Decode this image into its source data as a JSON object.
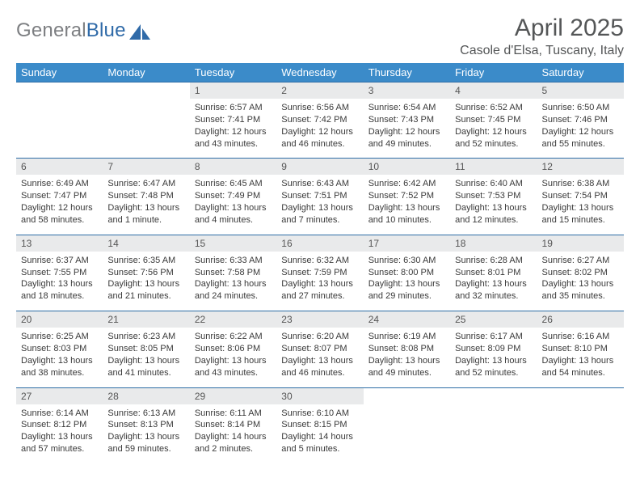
{
  "logo": {
    "general": "General",
    "blue": "Blue"
  },
  "title": "April 2025",
  "location": "Casole d'Elsa, Tuscany, Italy",
  "headers": [
    "Sunday",
    "Monday",
    "Tuesday",
    "Wednesday",
    "Thursday",
    "Friday",
    "Saturday"
  ],
  "colors": {
    "header_bg": "#3b8bc9",
    "header_fg": "#ffffff",
    "daynum_bg": "#e9eaeb",
    "rule": "#2e6ea6",
    "title_fg": "#545657"
  },
  "weeks": [
    [
      null,
      null,
      {
        "n": "1",
        "sunrise": "Sunrise: 6:57 AM",
        "sunset": "Sunset: 7:41 PM",
        "daylight": "Daylight: 12 hours and 43 minutes."
      },
      {
        "n": "2",
        "sunrise": "Sunrise: 6:56 AM",
        "sunset": "Sunset: 7:42 PM",
        "daylight": "Daylight: 12 hours and 46 minutes."
      },
      {
        "n": "3",
        "sunrise": "Sunrise: 6:54 AM",
        "sunset": "Sunset: 7:43 PM",
        "daylight": "Daylight: 12 hours and 49 minutes."
      },
      {
        "n": "4",
        "sunrise": "Sunrise: 6:52 AM",
        "sunset": "Sunset: 7:45 PM",
        "daylight": "Daylight: 12 hours and 52 minutes."
      },
      {
        "n": "5",
        "sunrise": "Sunrise: 6:50 AM",
        "sunset": "Sunset: 7:46 PM",
        "daylight": "Daylight: 12 hours and 55 minutes."
      }
    ],
    [
      {
        "n": "6",
        "sunrise": "Sunrise: 6:49 AM",
        "sunset": "Sunset: 7:47 PM",
        "daylight": "Daylight: 12 hours and 58 minutes."
      },
      {
        "n": "7",
        "sunrise": "Sunrise: 6:47 AM",
        "sunset": "Sunset: 7:48 PM",
        "daylight": "Daylight: 13 hours and 1 minute."
      },
      {
        "n": "8",
        "sunrise": "Sunrise: 6:45 AM",
        "sunset": "Sunset: 7:49 PM",
        "daylight": "Daylight: 13 hours and 4 minutes."
      },
      {
        "n": "9",
        "sunrise": "Sunrise: 6:43 AM",
        "sunset": "Sunset: 7:51 PM",
        "daylight": "Daylight: 13 hours and 7 minutes."
      },
      {
        "n": "10",
        "sunrise": "Sunrise: 6:42 AM",
        "sunset": "Sunset: 7:52 PM",
        "daylight": "Daylight: 13 hours and 10 minutes."
      },
      {
        "n": "11",
        "sunrise": "Sunrise: 6:40 AM",
        "sunset": "Sunset: 7:53 PM",
        "daylight": "Daylight: 13 hours and 12 minutes."
      },
      {
        "n": "12",
        "sunrise": "Sunrise: 6:38 AM",
        "sunset": "Sunset: 7:54 PM",
        "daylight": "Daylight: 13 hours and 15 minutes."
      }
    ],
    [
      {
        "n": "13",
        "sunrise": "Sunrise: 6:37 AM",
        "sunset": "Sunset: 7:55 PM",
        "daylight": "Daylight: 13 hours and 18 minutes."
      },
      {
        "n": "14",
        "sunrise": "Sunrise: 6:35 AM",
        "sunset": "Sunset: 7:56 PM",
        "daylight": "Daylight: 13 hours and 21 minutes."
      },
      {
        "n": "15",
        "sunrise": "Sunrise: 6:33 AM",
        "sunset": "Sunset: 7:58 PM",
        "daylight": "Daylight: 13 hours and 24 minutes."
      },
      {
        "n": "16",
        "sunrise": "Sunrise: 6:32 AM",
        "sunset": "Sunset: 7:59 PM",
        "daylight": "Daylight: 13 hours and 27 minutes."
      },
      {
        "n": "17",
        "sunrise": "Sunrise: 6:30 AM",
        "sunset": "Sunset: 8:00 PM",
        "daylight": "Daylight: 13 hours and 29 minutes."
      },
      {
        "n": "18",
        "sunrise": "Sunrise: 6:28 AM",
        "sunset": "Sunset: 8:01 PM",
        "daylight": "Daylight: 13 hours and 32 minutes."
      },
      {
        "n": "19",
        "sunrise": "Sunrise: 6:27 AM",
        "sunset": "Sunset: 8:02 PM",
        "daylight": "Daylight: 13 hours and 35 minutes."
      }
    ],
    [
      {
        "n": "20",
        "sunrise": "Sunrise: 6:25 AM",
        "sunset": "Sunset: 8:03 PM",
        "daylight": "Daylight: 13 hours and 38 minutes."
      },
      {
        "n": "21",
        "sunrise": "Sunrise: 6:23 AM",
        "sunset": "Sunset: 8:05 PM",
        "daylight": "Daylight: 13 hours and 41 minutes."
      },
      {
        "n": "22",
        "sunrise": "Sunrise: 6:22 AM",
        "sunset": "Sunset: 8:06 PM",
        "daylight": "Daylight: 13 hours and 43 minutes."
      },
      {
        "n": "23",
        "sunrise": "Sunrise: 6:20 AM",
        "sunset": "Sunset: 8:07 PM",
        "daylight": "Daylight: 13 hours and 46 minutes."
      },
      {
        "n": "24",
        "sunrise": "Sunrise: 6:19 AM",
        "sunset": "Sunset: 8:08 PM",
        "daylight": "Daylight: 13 hours and 49 minutes."
      },
      {
        "n": "25",
        "sunrise": "Sunrise: 6:17 AM",
        "sunset": "Sunset: 8:09 PM",
        "daylight": "Daylight: 13 hours and 52 minutes."
      },
      {
        "n": "26",
        "sunrise": "Sunrise: 6:16 AM",
        "sunset": "Sunset: 8:10 PM",
        "daylight": "Daylight: 13 hours and 54 minutes."
      }
    ],
    [
      {
        "n": "27",
        "sunrise": "Sunrise: 6:14 AM",
        "sunset": "Sunset: 8:12 PM",
        "daylight": "Daylight: 13 hours and 57 minutes."
      },
      {
        "n": "28",
        "sunrise": "Sunrise: 6:13 AM",
        "sunset": "Sunset: 8:13 PM",
        "daylight": "Daylight: 13 hours and 59 minutes."
      },
      {
        "n": "29",
        "sunrise": "Sunrise: 6:11 AM",
        "sunset": "Sunset: 8:14 PM",
        "daylight": "Daylight: 14 hours and 2 minutes."
      },
      {
        "n": "30",
        "sunrise": "Sunrise: 6:10 AM",
        "sunset": "Sunset: 8:15 PM",
        "daylight": "Daylight: 14 hours and 5 minutes."
      },
      null,
      null,
      null
    ]
  ]
}
